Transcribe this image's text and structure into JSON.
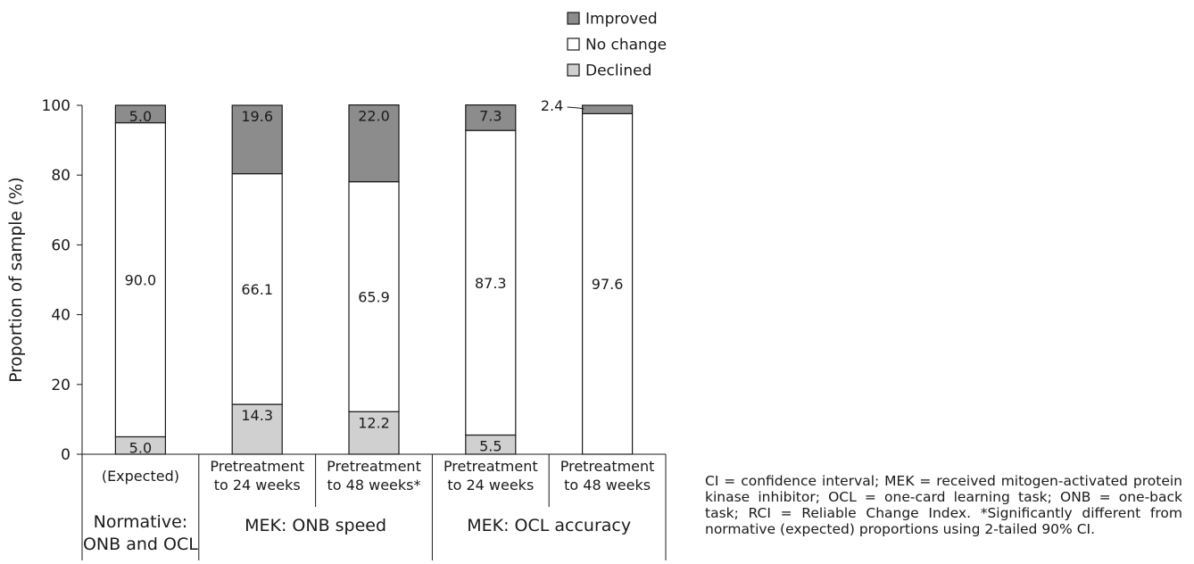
{
  "chart_data": {
    "type": "bar",
    "stacked": true,
    "ylabel": "Proportion of sample (%)",
    "ylim": [
      0,
      100
    ],
    "yticks": [
      0,
      20,
      40,
      60,
      80,
      100
    ],
    "grid": false,
    "legend_position": "top-center",
    "categories": [
      "(Expected)",
      "Pretreatment to 24 weeks",
      "Pretreatment to 48 weeks*",
      "Pretreatment to 24 weeks",
      "Pretreatment to 48 weeks"
    ],
    "category_lines": [
      [
        "(Expected)"
      ],
      [
        "Pretreatment",
        "to 24 weeks"
      ],
      [
        "Pretreatment",
        "to 48 weeks*"
      ],
      [
        "Pretreatment",
        "to 24 weeks"
      ],
      [
        "Pretreatment",
        "to 48 weeks"
      ]
    ],
    "groups": [
      {
        "lines": [
          "Normative:",
          "ONB and OCL"
        ],
        "members": [
          0
        ]
      },
      {
        "lines": [
          "MEK: ONB speed"
        ],
        "members": [
          1,
          2
        ]
      },
      {
        "lines": [
          "MEK: OCL accuracy"
        ],
        "members": [
          3,
          4
        ]
      }
    ],
    "series": [
      {
        "name": "Declined",
        "color": "#d0d0d0",
        "values": [
          5.0,
          14.3,
          12.2,
          5.5,
          0
        ],
        "labels": [
          "5.0",
          "14.3",
          "12.2",
          "5.5",
          ""
        ]
      },
      {
        "name": "No change",
        "color": "#ffffff",
        "values": [
          90.0,
          66.1,
          65.9,
          87.3,
          97.6
        ],
        "labels": [
          "90.0",
          "66.1",
          "65.9",
          "87.3",
          "97.6"
        ]
      },
      {
        "name": "Improved",
        "color": "#8c8c8c",
        "values": [
          5.0,
          19.6,
          22.0,
          7.3,
          2.4
        ],
        "labels": [
          "5.0",
          "19.6",
          "22.0",
          "7.3",
          "2.4"
        ]
      }
    ],
    "legend_order": [
      "Improved",
      "No change",
      "Declined"
    ]
  },
  "footnote": "CI = confidence interval; MEK = received mitogen-activated protein kinase inhibitor; OCL = one-card learning task; ONB = one-back task; RCI = Reliable Change Index. *Significantly different from normative (expected) proportions using 2-tailed 90% CI."
}
